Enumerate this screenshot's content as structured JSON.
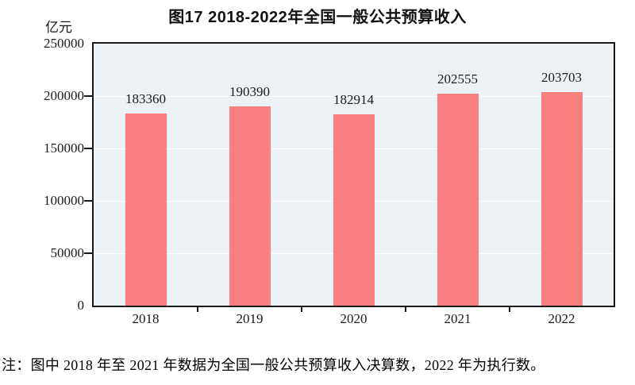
{
  "title": "图17  2018-2022年全国一般公共预算收入",
  "unit_label": "亿元",
  "note": "注：图中 2018 年至 2021 年数据为全国一般公共预算收入决算数，2022 年为执行数。",
  "colors": {
    "bar": "#f98080",
    "plot_background": "#edf2f6",
    "gridline": "#ffffff",
    "axis": "#1a1a1a",
    "text": "#1a1a1a"
  },
  "chart_data": {
    "type": "bar",
    "title": "图17  2018-2022年全国一般公共预算收入",
    "categories": [
      "2018",
      "2019",
      "2020",
      "2021",
      "2022"
    ],
    "values": [
      183360,
      190390,
      182914,
      202555,
      203703
    ],
    "data_labels": [
      "183360",
      "190390",
      "182914",
      "202555",
      "203703"
    ],
    "xlabel": "",
    "ylabel": "亿元",
    "ylim": [
      0,
      250000
    ],
    "yticks": [
      0,
      50000,
      100000,
      150000,
      200000,
      250000
    ],
    "grid": true,
    "legend": "none",
    "bar_color": "#f98080"
  }
}
